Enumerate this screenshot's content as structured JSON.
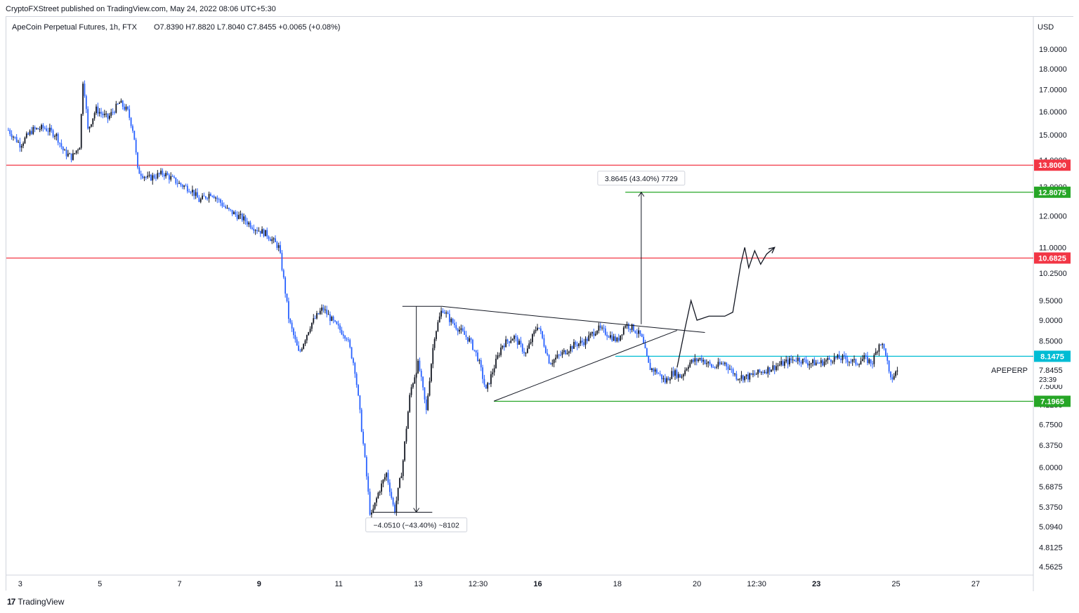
{
  "publisher_line": "CryptoFXStreet published on TradingView.com, May 24, 2022 08:06 UTC+5:30",
  "footer": {
    "logo_glyph": "17",
    "brand": "TradingView"
  },
  "colors": {
    "up": "#131722",
    "down": "#2962ff",
    "resistance": "#f23645",
    "target": "#26a626",
    "current": "#00bcd4",
    "text": "#131722"
  },
  "chart_data": {
    "type": "candlestick",
    "title": "ApeCoin Perpetual Futures, 1h, FTX",
    "ohlc_label": "O7.8390  H7.8820  L7.8040  C7.8455  +0.0065 (+0.08%)",
    "currency": "USD",
    "y_scale": "log",
    "ylim": [
      4.5,
      19.6
    ],
    "y_ticks": [
      "19.0000",
      "18.0000",
      "17.0000",
      "16.0000",
      "15.0000",
      "14.0000",
      "13.0000",
      "12.0000",
      "11.0000",
      "10.2500",
      "9.5000",
      "9.0000",
      "8.5000",
      "8.1000",
      "7.5000",
      "7.1250",
      "6.7500",
      "6.3750",
      "6.0000",
      "5.6875",
      "5.3750",
      "5.0940",
      "4.8125",
      "4.5625"
    ],
    "x_ticks": [
      {
        "label": "3",
        "day": 3.0,
        "bold": false
      },
      {
        "label": "5",
        "day": 5.0,
        "bold": false
      },
      {
        "label": "7",
        "day": 7.0,
        "bold": false
      },
      {
        "label": "9",
        "day": 9.0,
        "bold": true
      },
      {
        "label": "11",
        "day": 11.0,
        "bold": false
      },
      {
        "label": "13",
        "day": 13.0,
        "bold": false
      },
      {
        "label": "12:30",
        "day": 14.5,
        "bold": false
      },
      {
        "label": "16",
        "day": 16.0,
        "bold": true
      },
      {
        "label": "18",
        "day": 18.0,
        "bold": false
      },
      {
        "label": "20",
        "day": 20.0,
        "bold": false
      },
      {
        "label": "12:30",
        "day": 21.5,
        "bold": false
      },
      {
        "label": "23",
        "day": 23.0,
        "bold": true
      },
      {
        "label": "25",
        "day": 25.0,
        "bold": false
      },
      {
        "label": "27",
        "day": 27.0,
        "bold": false
      }
    ],
    "x_range_days": [
      2.65,
      28.45
    ],
    "price_path": [
      [
        2.7,
        15.2
      ],
      [
        3.0,
        14.6
      ],
      [
        3.3,
        15.2
      ],
      [
        3.6,
        15.3
      ],
      [
        3.9,
        15.0
      ],
      [
        4.1,
        14.3
      ],
      [
        4.3,
        14.1
      ],
      [
        4.5,
        14.6
      ],
      [
        4.58,
        17.6
      ],
      [
        4.7,
        15.2
      ],
      [
        4.9,
        16.1
      ],
      [
        5.2,
        15.7
      ],
      [
        5.5,
        16.4
      ],
      [
        5.7,
        16.0
      ],
      [
        5.85,
        15.1
      ],
      [
        5.95,
        13.6
      ],
      [
        6.2,
        13.3
      ],
      [
        6.6,
        13.5
      ],
      [
        7.0,
        13.1
      ],
      [
        7.3,
        12.9
      ],
      [
        7.5,
        12.5
      ],
      [
        7.8,
        12.8
      ],
      [
        8.2,
        12.2
      ],
      [
        8.6,
        11.9
      ],
      [
        8.9,
        11.6
      ],
      [
        9.2,
        11.4
      ],
      [
        9.5,
        11.0
      ],
      [
        9.75,
        9.0
      ],
      [
        10.0,
        8.2
      ],
      [
        10.3,
        8.9
      ],
      [
        10.6,
        9.3
      ],
      [
        10.9,
        8.9
      ],
      [
        11.2,
        8.6
      ],
      [
        11.4,
        7.9
      ],
      [
        11.6,
        6.5
      ],
      [
        11.8,
        5.2
      ],
      [
        12.0,
        5.6
      ],
      [
        12.2,
        5.9
      ],
      [
        12.4,
        5.3
      ],
      [
        12.6,
        6.0
      ],
      [
        12.8,
        7.4
      ],
      [
        13.0,
        8.0
      ],
      [
        13.2,
        7.0
      ],
      [
        13.4,
        8.6
      ],
      [
        13.6,
        9.3
      ],
      [
        13.8,
        9.0
      ],
      [
        14.0,
        8.8
      ],
      [
        14.3,
        8.5
      ],
      [
        14.5,
        8.1
      ],
      [
        14.7,
        7.4
      ],
      [
        14.9,
        7.9
      ],
      [
        15.1,
        8.4
      ],
      [
        15.4,
        8.6
      ],
      [
        15.7,
        8.2
      ],
      [
        16.0,
        8.9
      ],
      [
        16.3,
        8.0
      ],
      [
        16.6,
        8.2
      ],
      [
        16.9,
        8.4
      ],
      [
        17.2,
        8.5
      ],
      [
        17.5,
        8.8
      ],
      [
        17.7,
        8.7
      ],
      [
        18.0,
        8.5
      ],
      [
        18.2,
        8.9
      ],
      [
        18.4,
        8.8
      ],
      [
        18.6,
        8.6
      ],
      [
        18.8,
        7.9
      ],
      [
        19.0,
        7.8
      ],
      [
        19.2,
        7.6
      ],
      [
        19.4,
        7.8
      ],
      [
        19.6,
        7.7
      ],
      [
        19.8,
        8.0
      ],
      [
        20.1,
        8.1
      ],
      [
        20.4,
        7.9
      ],
      [
        20.7,
        8.0
      ],
      [
        21.0,
        7.7
      ],
      [
        21.3,
        7.7
      ],
      [
        21.6,
        7.8
      ],
      [
        21.9,
        7.9
      ],
      [
        22.2,
        8.0
      ],
      [
        22.5,
        8.1
      ],
      [
        22.8,
        8.0
      ],
      [
        23.1,
        8.0
      ],
      [
        23.4,
        8.1
      ],
      [
        23.7,
        8.1
      ],
      [
        24.0,
        8.0
      ],
      [
        24.2,
        8.1
      ],
      [
        24.4,
        8.0
      ],
      [
        24.6,
        8.5
      ],
      [
        24.75,
        8.2
      ],
      [
        24.85,
        7.6
      ],
      [
        25.0,
        7.8
      ],
      [
        25.05,
        7.85
      ]
    ],
    "levels": [
      {
        "label": "13.8000",
        "price": 13.8,
        "color": "#f23645",
        "from_day": 2.65
      },
      {
        "label": "10.6825",
        "price": 10.6825,
        "color": "#f23645",
        "from_day": 2.65
      },
      {
        "label": "12.8075",
        "price": 12.8075,
        "color": "#26a626",
        "from_day": 18.2
      },
      {
        "label": "8.1475",
        "price": 8.1475,
        "color": "#00bcd4",
        "from_day": 17.95
      },
      {
        "label": "7.1965",
        "price": 7.1965,
        "color": "#26a626",
        "from_day": 14.9
      }
    ],
    "current": {
      "symbol": "APEPERP",
      "price_label": "7.8455",
      "countdown": "23:39",
      "price": 7.8455
    },
    "triangle": {
      "top_line": [
        [
          12.6,
          9.35
        ],
        [
          13.6,
          9.35
        ],
        [
          16.0,
          9.1
        ],
        [
          20.2,
          8.7
        ]
      ],
      "bottom_line": [
        [
          14.9,
          7.2
        ],
        [
          19.5,
          8.75
        ]
      ]
    },
    "measure_up": {
      "from_price": 8.9,
      "to_price": 12.8075,
      "day": 18.6,
      "label": "3.8645 (43.40%) 7729"
    },
    "measure_down": {
      "from_price": 9.35,
      "to_price": 5.3,
      "day": 12.95,
      "label": "−4.0510 (−43.40%) ~8102"
    },
    "projection": [
      [
        19.5,
        7.9
      ],
      [
        19.7,
        8.8
      ],
      [
        19.85,
        9.5
      ],
      [
        20.0,
        9.0
      ],
      [
        20.3,
        9.1
      ],
      [
        20.7,
        9.1
      ],
      [
        20.9,
        9.2
      ],
      [
        21.1,
        10.5
      ],
      [
        21.2,
        11.0
      ],
      [
        21.3,
        10.4
      ],
      [
        21.45,
        10.9
      ],
      [
        21.6,
        10.5
      ],
      [
        21.75,
        10.8
      ],
      [
        21.95,
        11.0
      ]
    ]
  }
}
